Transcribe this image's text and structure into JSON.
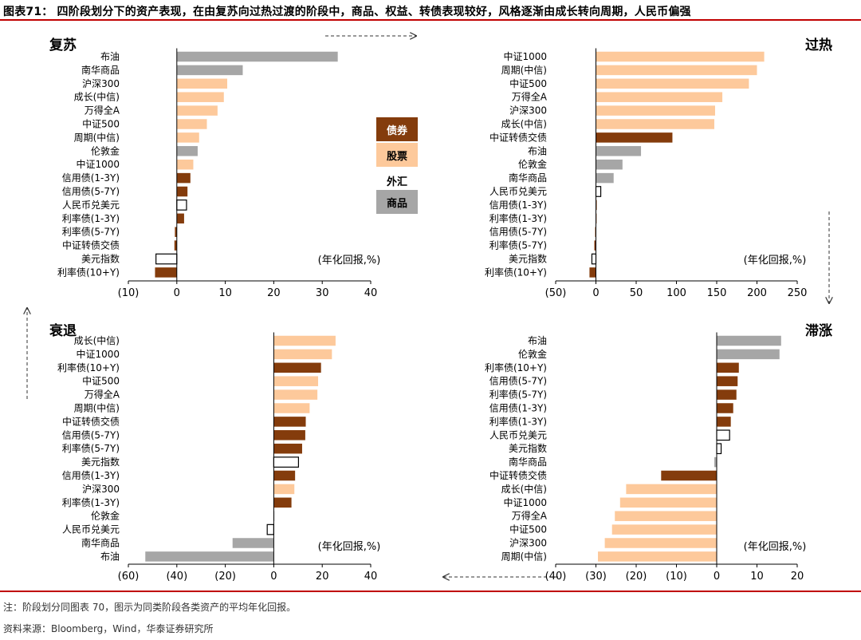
{
  "header": {
    "title": "图表71： 四阶段划分下的资产表现，在由复苏向过热过渡的阶段中，商品、权益、转债表现较好，风格逐渐由成长转向周期，人民币偏强"
  },
  "legend": [
    {
      "label": "债券",
      "kind": "bond"
    },
    {
      "label": "股票",
      "kind": "equity"
    },
    {
      "label": "外汇",
      "kind": "fx"
    },
    {
      "label": "商品",
      "kind": "commodity"
    }
  ],
  "colors": {
    "bond": "#843c0c",
    "equity": "#fdc99b",
    "fx": "#ffffff",
    "commodity": "#a6a6a6",
    "outline": "#000000",
    "accent_red": "#c00000"
  },
  "chart_data": [
    {
      "id": "recovery",
      "type": "bar",
      "orientation": "horizontal",
      "title": "复苏",
      "unit_label": "(年化回报,%)",
      "xlim": [
        -10,
        40
      ],
      "ticks": [
        -10,
        0,
        10,
        20,
        30,
        40
      ],
      "tick_labels": [
        "(10)",
        "0",
        "10",
        "20",
        "30",
        "40"
      ],
      "categories": [
        "布油",
        "南华商品",
        "沪深300",
        "成长(中信)",
        "万得全A",
        "中证500",
        "周期(中信)",
        "伦敦金",
        "中证1000",
        "信用债(1-3Y)",
        "信用债(5-7Y)",
        "人民币兑美元",
        "利率债(1-3Y)",
        "利率债(5-7Y)",
        "中证转债交债",
        "美元指数",
        "利率债(10+Y)"
      ],
      "values": [
        33.2,
        13.6,
        10.4,
        9.7,
        8.4,
        6.2,
        4.6,
        4.3,
        3.4,
        2.8,
        2.2,
        2.0,
        1.5,
        -0.4,
        -0.5,
        -4.3,
        -4.5
      ],
      "kinds": [
        "commodity",
        "commodity",
        "equity",
        "equity",
        "equity",
        "equity",
        "equity",
        "commodity",
        "equity",
        "bond",
        "bond",
        "fx",
        "bond",
        "bond",
        "bond",
        "fx",
        "bond"
      ]
    },
    {
      "id": "overheat",
      "type": "bar",
      "orientation": "horizontal",
      "title": "过热",
      "unit_label": "(年化回报,%)",
      "xlim": [
        -50,
        250
      ],
      "ticks": [
        -50,
        0,
        50,
        100,
        150,
        200,
        250
      ],
      "tick_labels": [
        "(50)",
        "0",
        "50",
        "100",
        "150",
        "200",
        "250"
      ],
      "categories": [
        "中证1000",
        "周期(中信)",
        "中证500",
        "万得全A",
        "沪深300",
        "成长(中信)",
        "中证转债交债",
        "布油",
        "伦敦金",
        "南华商品",
        "人民币兑美元",
        "信用债(1-3Y)",
        "利率债(1-3Y)",
        "信用债(5-7Y)",
        "利率债(5-7Y)",
        "美元指数",
        "利率债(10+Y)"
      ],
      "values": [
        209,
        200,
        190,
        157,
        148,
        147,
        95,
        56,
        33,
        22,
        6,
        1,
        0.5,
        -1,
        -2,
        -5,
        -8
      ],
      "kinds": [
        "equity",
        "equity",
        "equity",
        "equity",
        "equity",
        "equity",
        "bond",
        "commodity",
        "commodity",
        "commodity",
        "fx",
        "bond",
        "bond",
        "bond",
        "bond",
        "fx",
        "bond"
      ]
    },
    {
      "id": "recession",
      "type": "bar",
      "orientation": "horizontal",
      "title": "衰退",
      "unit_label": "(年化回报,%)",
      "xlim": [
        -60,
        40
      ],
      "ticks": [
        -60,
        -40,
        -20,
        0,
        20,
        40
      ],
      "tick_labels": [
        "(60)",
        "(40)",
        "(20)",
        "0",
        "20",
        "40"
      ],
      "categories": [
        "成长(中信)",
        "中证1000",
        "利率债(10+Y)",
        "中证500",
        "万得全A",
        "周期(中信)",
        "中证转债交债",
        "信用债(5-7Y)",
        "利率债(5-7Y)",
        "美元指数",
        "信用债(1-3Y)",
        "沪深300",
        "利率债(1-3Y)",
        "伦敦金",
        "人民币兑美元",
        "南华商品",
        "布油"
      ],
      "values": [
        25.5,
        24,
        19.5,
        18.3,
        18,
        14.8,
        13.2,
        13,
        11.7,
        10.2,
        8.8,
        8.5,
        7.3,
        0.2,
        -2.7,
        -17,
        -53
      ],
      "kinds": [
        "equity",
        "equity",
        "bond",
        "equity",
        "equity",
        "equity",
        "bond",
        "bond",
        "bond",
        "fx",
        "bond",
        "equity",
        "bond",
        "commodity",
        "fx",
        "commodity",
        "commodity"
      ]
    },
    {
      "id": "stagflation",
      "type": "bar",
      "orientation": "horizontal",
      "title": "滞涨",
      "unit_label": "(年化回报,%)",
      "xlim": [
        -40,
        20
      ],
      "ticks": [
        -40,
        -30,
        -20,
        -10,
        0,
        10,
        20
      ],
      "tick_labels": [
        "(40)",
        "(30)",
        "(20)",
        "(10)",
        "0",
        "10",
        "20"
      ],
      "categories": [
        "布油",
        "伦敦金",
        "利率债(10+Y)",
        "信用债(5-7Y)",
        "利率债(5-7Y)",
        "信用债(1-3Y)",
        "利率债(1-3Y)",
        "人民币兑美元",
        "美元指数",
        "南华商品",
        "中证转债交债",
        "成长(中信)",
        "中证1000",
        "万得全A",
        "中证500",
        "沪深300",
        "周期(中信)"
      ],
      "values": [
        16,
        15.6,
        5.5,
        5.2,
        4.9,
        4.1,
        3.5,
        3.2,
        1.1,
        -0.6,
        -13.8,
        -22.5,
        -24,
        -25.3,
        -26,
        -27.8,
        -29.5
      ],
      "kinds": [
        "commodity",
        "commodity",
        "bond",
        "bond",
        "bond",
        "bond",
        "bond",
        "fx",
        "fx",
        "commodity",
        "bond",
        "equity",
        "equity",
        "equity",
        "equity",
        "equity",
        "equity"
      ]
    }
  ],
  "footer": {
    "note": "注：阶段划分同图表 70，图示为同类阶段各类资产的平均年化回报。",
    "source": "资料来源：Bloomberg，Wind，华泰证券研究所"
  }
}
